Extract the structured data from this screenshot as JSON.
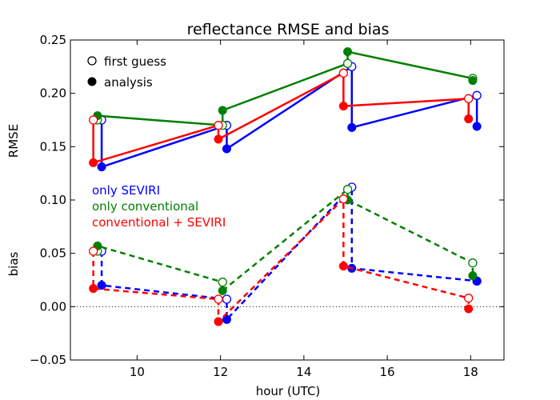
{
  "chart_data": {
    "type": "line",
    "title": "reflectance RMSE and bias",
    "xlabel": "hour (UTC)",
    "ylabel_top": "RMSE",
    "ylabel_bottom": "bias",
    "xlim": [
      8.4,
      18.8
    ],
    "ylim": [
      -0.05,
      0.25
    ],
    "xticks": [
      10,
      12,
      14,
      16,
      18
    ],
    "xtick_labels": [
      "10",
      "12",
      "14",
      "16",
      "18"
    ],
    "yticks": [
      -0.05,
      0.0,
      0.05,
      0.1,
      0.15,
      0.2,
      0.25
    ],
    "ytick_labels": [
      "−0.05",
      "0.00",
      "0.05",
      "0.10",
      "0.15",
      "0.20",
      "0.25"
    ],
    "zero_line": 0.0,
    "grid": false,
    "legend_markers": {
      "placement": "top-left",
      "entries": [
        {
          "label": "first guess",
          "marker": "open-circle"
        },
        {
          "label": "analysis",
          "marker": "filled-circle"
        }
      ]
    },
    "legend_experiments": {
      "placement": "center-left",
      "entries": [
        "only SEVIRI",
        "only conventional",
        "conventional + SEVIRI"
      ]
    },
    "series": [
      {
        "name": "only SEVIRI",
        "color": "#0000ff",
        "rmse": {
          "x": [
            9.15,
            12.15,
            15.15,
            18.15
          ],
          "first_guess": [
            0.175,
            0.17,
            0.225,
            0.198
          ],
          "analysis": [
            0.131,
            0.148,
            0.168,
            0.169
          ]
        },
        "bias": {
          "x": [
            9.15,
            12.15,
            15.15,
            18.15
          ],
          "first_guess": [
            0.052,
            0.007,
            0.112,
            0.024
          ],
          "analysis": [
            0.02,
            -0.012,
            0.036,
            0.024
          ]
        }
      },
      {
        "name": "only conventional",
        "color": "#008000",
        "rmse": {
          "x": [
            9.05,
            12.05,
            15.05,
            18.05
          ],
          "first_guess": [
            0.175,
            0.17,
            0.228,
            0.214
          ],
          "analysis": [
            0.179,
            0.184,
            0.239,
            0.212
          ]
        },
        "bias": {
          "x": [
            9.05,
            12.05,
            15.05,
            18.05
          ],
          "first_guess": [
            0.052,
            0.023,
            0.11,
            0.041
          ],
          "analysis": [
            0.057,
            0.015,
            0.1,
            0.029
          ]
        }
      },
      {
        "name": "conventional + SEVIRI",
        "color": "#ff0000",
        "rmse": {
          "x": [
            8.95,
            11.95,
            14.95,
            17.95
          ],
          "first_guess": [
            0.175,
            0.17,
            0.219,
            0.195
          ],
          "analysis": [
            0.135,
            0.157,
            0.188,
            0.176
          ]
        },
        "bias": {
          "x": [
            8.95,
            11.95,
            14.95,
            17.95
          ],
          "first_guess": [
            0.052,
            0.007,
            0.101,
            0.008
          ],
          "analysis": [
            0.017,
            -0.014,
            0.038,
            -0.002
          ]
        }
      }
    ]
  }
}
